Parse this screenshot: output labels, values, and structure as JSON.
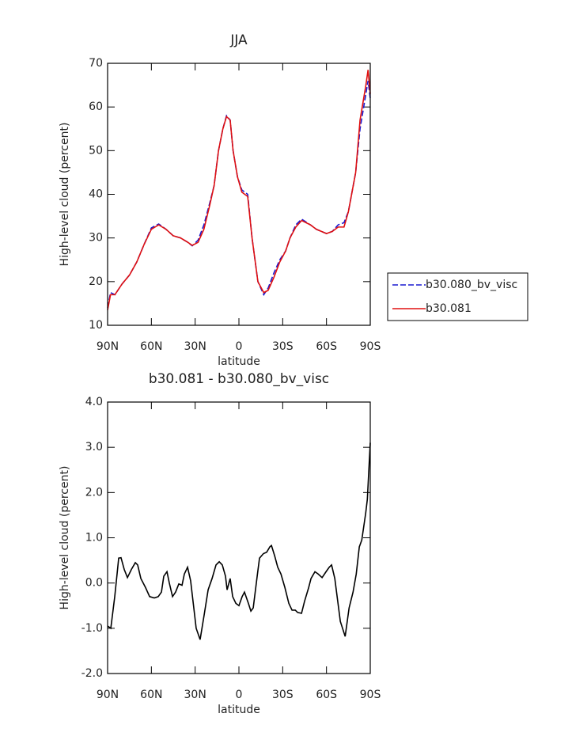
{
  "chart_data": [
    {
      "type": "line",
      "title": "JJA",
      "xlabel": "latitude",
      "ylabel": "High-level cloud (percent)",
      "x": [
        90,
        88,
        85,
        80,
        75,
        70,
        65,
        60,
        55,
        50,
        45,
        40,
        35,
        32,
        28,
        24,
        20,
        17,
        14,
        11,
        8.5,
        6,
        4,
        1,
        -2,
        -6,
        -9,
        -13,
        -17,
        -20,
        -24,
        -28,
        -32,
        -35,
        -39,
        -43,
        -49,
        -53,
        -60,
        -64,
        -68,
        -72,
        -75,
        -80,
        -83,
        -87,
        -88.5,
        -90
      ],
      "series": [
        {
          "name": "b30.080_bv_visc",
          "color": "#1a1ad0",
          "dash": "dashed",
          "values": [
            14,
            17.5,
            17,
            19.5,
            21.5,
            24.5,
            28.5,
            32.3,
            33.2,
            32,
            30.5,
            30,
            29,
            28.2,
            29.5,
            33,
            38,
            42,
            50,
            55,
            58,
            57,
            50,
            44,
            41,
            40,
            30,
            20,
            17,
            18.5,
            22,
            25,
            27,
            30,
            33,
            34.3,
            33,
            32,
            31,
            31.5,
            33,
            33.5,
            36,
            45,
            55,
            63,
            66,
            62
          ]
        },
        {
          "name": "b30.081",
          "color": "#e01010",
          "dash": "solid",
          "values": [
            13.5,
            17,
            17,
            19.5,
            21.5,
            24.5,
            28.5,
            32,
            33,
            32,
            30.5,
            30,
            29,
            28.3,
            29,
            32,
            37.5,
            42,
            50,
            55,
            57.8,
            57,
            50,
            44,
            40.5,
            39.5,
            30,
            20,
            17.5,
            18,
            21,
            24.5,
            27,
            30,
            32.5,
            34,
            33,
            32,
            31,
            31.5,
            32.5,
            32.5,
            36,
            45,
            57,
            65,
            68.5,
            63
          ]
        }
      ],
      "xlim": [
        90,
        -90
      ],
      "xticks": [
        {
          "value": 90,
          "label": "90N"
        },
        {
          "value": 60,
          "label": "60N"
        },
        {
          "value": 30,
          "label": "30N"
        },
        0,
        {
          "value": -30,
          "label": "30S"
        },
        {
          "value": -60,
          "label": "60S"
        },
        {
          "value": -90,
          "label": "90S"
        }
      ],
      "ylim": [
        10,
        70
      ],
      "yticks": [
        10,
        20,
        30,
        40,
        50,
        60,
        70
      ],
      "legend": "right"
    },
    {
      "type": "line",
      "title": "b30.081 - b30.080_bv_visc",
      "xlabel": "latitude",
      "ylabel": "High-level cloud (percent)",
      "x": [
        90,
        87.8,
        85.1,
        83.5,
        82.4,
        80.8,
        78.6,
        76.4,
        73.7,
        71,
        69.4,
        67.2,
        64,
        61.2,
        58,
        55.3,
        53.1,
        51.5,
        49.3,
        47.7,
        45.5,
        43.4,
        41.2,
        39,
        37.4,
        35.2,
        33.1,
        29.3,
        26.6,
        23.8,
        21.1,
        18.4,
        15.7,
        13.5,
        11.4,
        9.2,
        8.1,
        6,
        4.3,
        2.1,
        0,
        -2.2,
        -3.8,
        -6.5,
        -8.2,
        -9.8,
        -12.5,
        -14.1,
        -16.8,
        -19,
        -21.2,
        -22.3,
        -24.5,
        -26.6,
        -28.8,
        -31.5,
        -34.2,
        -36.4,
        -38.6,
        -40.2,
        -42.9,
        -45,
        -47.8,
        -49.4,
        -52.1,
        -54.3,
        -57,
        -59.7,
        -61.9,
        -63.5,
        -65.7,
        -67.3,
        -69.5,
        -72.8,
        -75.5,
        -78.2,
        -80.4,
        -82.5,
        -84.2,
        -86.9,
        -88,
        -90
      ],
      "series": [
        {
          "name": "b30.081 - b30.080_bv_visc",
          "color": "#000000",
          "dash": "solid",
          "values": [
            -0.95,
            -1.0,
            -0.3,
            0.2,
            0.55,
            0.56,
            0.3,
            0.12,
            0.3,
            0.45,
            0.4,
            0.1,
            -0.1,
            -0.3,
            -0.33,
            -0.3,
            -0.2,
            0.15,
            0.25,
            0,
            -0.3,
            -0.2,
            -0.02,
            -0.05,
            0.2,
            0.35,
            0.05,
            -1.0,
            -1.25,
            -0.7,
            -0.15,
            0.1,
            0.4,
            0.47,
            0.4,
            0.15,
            -0.15,
            0.1,
            -0.3,
            -0.45,
            -0.5,
            -0.3,
            -0.2,
            -0.45,
            -0.62,
            -0.55,
            0.15,
            0.55,
            0.65,
            0.68,
            0.8,
            0.83,
            0.6,
            0.35,
            0.2,
            -0.1,
            -0.45,
            -0.6,
            -0.6,
            -0.65,
            -0.67,
            -0.4,
            -0.1,
            0.1,
            0.25,
            0.2,
            0.12,
            0.25,
            0.35,
            0.4,
            0.1,
            -0.3,
            -0.85,
            -1.18,
            -0.55,
            -0.2,
            0.2,
            0.8,
            0.95,
            1.55,
            1.85,
            3.1
          ]
        }
      ],
      "xlim": [
        90,
        -90
      ],
      "xticks": [
        {
          "value": 90,
          "label": "90N"
        },
        {
          "value": 60,
          "label": "60N"
        },
        {
          "value": 30,
          "label": "30N"
        },
        0,
        {
          "value": -30,
          "label": "30S"
        },
        {
          "value": -60,
          "label": "60S"
        },
        {
          "value": -90,
          "label": "90S"
        }
      ],
      "ylim": [
        -2,
        4
      ],
      "yticks": [
        {
          "value": -2,
          "label": "-2.0"
        },
        {
          "value": -1,
          "label": "-1.0"
        },
        {
          "value": 0,
          "label": "0.0"
        },
        {
          "value": 1,
          "label": "1.0"
        },
        {
          "value": 2,
          "label": "2.0"
        },
        {
          "value": 3,
          "label": "3.0"
        },
        {
          "value": 4,
          "label": "4.0"
        }
      ]
    }
  ]
}
